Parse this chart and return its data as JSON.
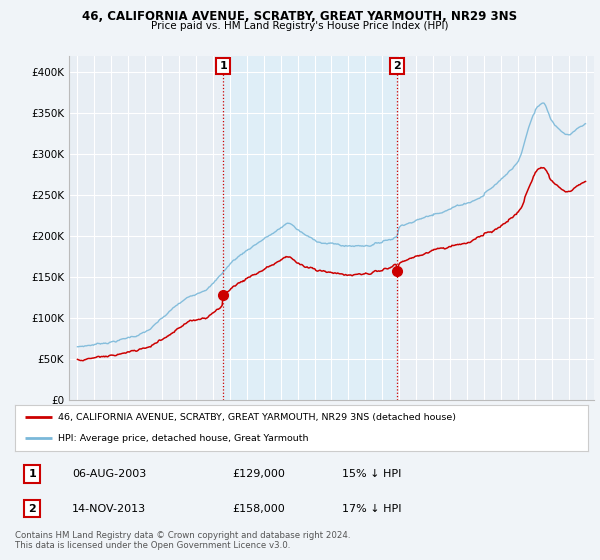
{
  "title": "46, CALIFORNIA AVENUE, SCRATBY, GREAT YARMOUTH, NR29 3NS",
  "subtitle": "Price paid vs. HM Land Registry's House Price Index (HPI)",
  "ylim": [
    0,
    420000
  ],
  "yticks": [
    0,
    50000,
    100000,
    150000,
    200000,
    250000,
    300000,
    350000,
    400000
  ],
  "ytick_labels": [
    "£0",
    "£50K",
    "£100K",
    "£150K",
    "£200K",
    "£250K",
    "£300K",
    "£350K",
    "£400K"
  ],
  "sale1_date_x": 2003.6,
  "sale1_price": 129000,
  "sale1_label": "06-AUG-2003",
  "sale1_amount": "£129,000",
  "sale1_pct": "15% ↓ HPI",
  "sale2_date_x": 2013.87,
  "sale2_price": 158000,
  "sale2_label": "14-NOV-2013",
  "sale2_amount": "£158,000",
  "sale2_pct": "17% ↓ HPI",
  "hpi_line_color": "#7ab8d9",
  "sale_line_color": "#cc0000",
  "vline_color": "#cc0000",
  "background_color": "#f0f4f8",
  "plot_bg_color": "#e8eef4",
  "shade_color": "#ddeef8",
  "grid_color": "#ffffff",
  "legend_entry1": "46, CALIFORNIA AVENUE, SCRATBY, GREAT YARMOUTH, NR29 3NS (detached house)",
  "legend_entry2": "HPI: Average price, detached house, Great Yarmouth",
  "footer": "Contains HM Land Registry data © Crown copyright and database right 2024.\nThis data is licensed under the Open Government Licence v3.0.",
  "xlim_left": 1994.5,
  "xlim_right": 2025.5
}
